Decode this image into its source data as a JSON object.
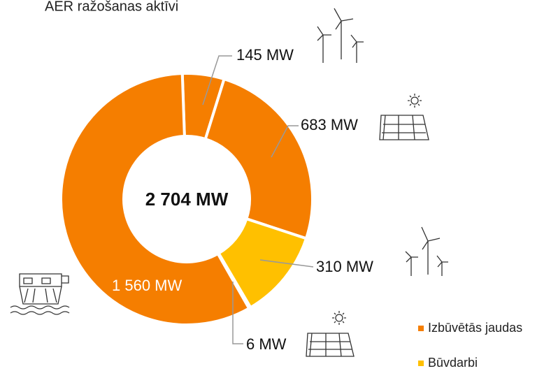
{
  "chart_data": {
    "type": "donut",
    "title": "AER ražošanas aktīvi",
    "center_label": "2 704 MW",
    "values": [
      145,
      683,
      310,
      6,
      1560
    ],
    "value_labels": [
      "145 MW",
      "683 MW",
      "310 MW",
      "6 MW",
      "1 560 MW"
    ],
    "colors": [
      "#f57e00",
      "#f57e00",
      "#ffc000",
      "#ffc000",
      "#f57e00"
    ],
    "legend": [
      {
        "name": "Izbūvētās jaudas",
        "color": "#f57e00"
      },
      {
        "name": "Būvdarbi",
        "color": "#ffc000"
      }
    ]
  }
}
